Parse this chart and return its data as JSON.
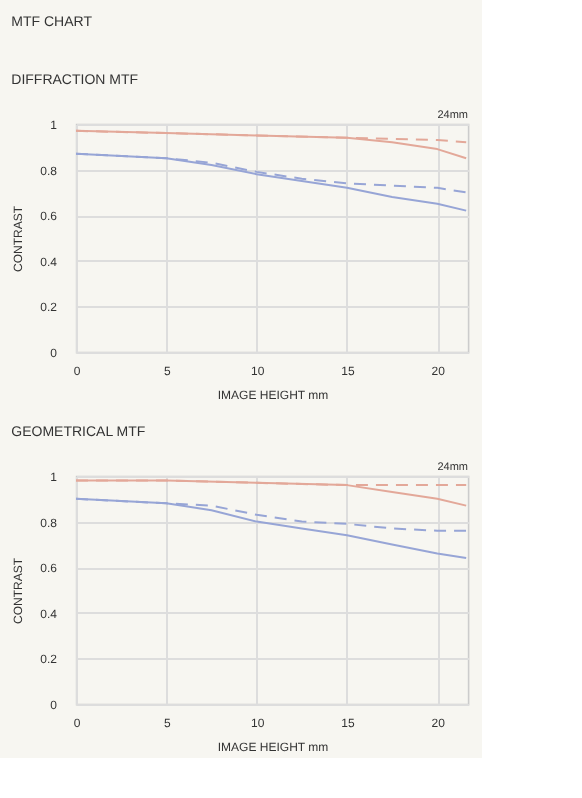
{
  "chart_data": [
    {
      "type": "line",
      "title": "MTF CHART",
      "subtitle": "DIFFRACTION MTF",
      "xlabel": "IMAGE HEIGHT  mm",
      "ylabel": "CONTRAST",
      "annotations": [
        "24mm"
      ],
      "xlim": [
        0,
        21.7
      ],
      "xticks": [
        0,
        5,
        10,
        15,
        20
      ],
      "ylim": [
        0,
        1
      ],
      "yticks": [
        0,
        0.2,
        0.4,
        0.6,
        0.8,
        1
      ],
      "grid": true,
      "marker": "none",
      "series": [
        {
          "color": "#e3a899",
          "line_style": "solid",
          "x": [
            0,
            5,
            10,
            15,
            17.5,
            20,
            21.6
          ],
          "values": [
            0.97,
            0.96,
            0.95,
            0.94,
            0.92,
            0.89,
            0.85
          ]
        },
        {
          "color": "#e3a899",
          "line_style": "dashed",
          "x": [
            0,
            5,
            10,
            15,
            20,
            21.6
          ],
          "values": [
            0.97,
            0.96,
            0.95,
            0.94,
            0.93,
            0.92
          ]
        },
        {
          "color": "#97a5d6",
          "line_style": "solid",
          "x": [
            0,
            2.5,
            5,
            7.5,
            10,
            12.5,
            15,
            17.5,
            20,
            21.6
          ],
          "values": [
            0.87,
            0.86,
            0.85,
            0.82,
            0.78,
            0.75,
            0.72,
            0.68,
            0.65,
            0.62
          ]
        },
        {
          "color": "#97a5d6",
          "line_style": "dashed",
          "x": [
            0,
            5,
            7.5,
            10,
            12.5,
            15,
            17.5,
            20,
            21.6
          ],
          "values": [
            0.87,
            0.85,
            0.83,
            0.79,
            0.76,
            0.74,
            0.73,
            0.72,
            0.7
          ]
        }
      ]
    },
    {
      "type": "line",
      "title": "GEOMETRICAL MTF",
      "xlabel": "IMAGE HEIGHT  mm",
      "ylabel": "CONTRAST",
      "annotations": [
        "24mm"
      ],
      "xlim": [
        0,
        21.7
      ],
      "xticks": [
        0,
        5,
        10,
        15,
        20
      ],
      "ylim": [
        0,
        1
      ],
      "yticks": [
        0,
        0.2,
        0.4,
        0.6,
        0.8,
        1
      ],
      "grid": true,
      "marker": "none",
      "series": [
        {
          "color": "#e3a899",
          "line_style": "solid",
          "x": [
            0,
            5,
            10,
            15,
            17.5,
            20,
            21.6
          ],
          "values": [
            0.98,
            0.98,
            0.97,
            0.96,
            0.93,
            0.9,
            0.87
          ]
        },
        {
          "color": "#e3a899",
          "line_style": "dashed",
          "x": [
            0,
            5,
            10,
            15,
            20,
            21.6
          ],
          "values": [
            0.98,
            0.98,
            0.97,
            0.96,
            0.96,
            0.96
          ]
        },
        {
          "color": "#97a5d6",
          "line_style": "solid",
          "x": [
            0,
            2.5,
            5,
            7.5,
            10,
            12.5,
            15,
            17.5,
            20,
            21.6
          ],
          "values": [
            0.9,
            0.89,
            0.88,
            0.85,
            0.8,
            0.77,
            0.74,
            0.7,
            0.66,
            0.64
          ]
        },
        {
          "color": "#97a5d6",
          "line_style": "dashed",
          "x": [
            0,
            5,
            7.5,
            10,
            12.5,
            15,
            17.5,
            20,
            21.6
          ],
          "values": [
            0.9,
            0.88,
            0.87,
            0.83,
            0.8,
            0.79,
            0.77,
            0.76,
            0.76
          ]
        }
      ]
    }
  ]
}
